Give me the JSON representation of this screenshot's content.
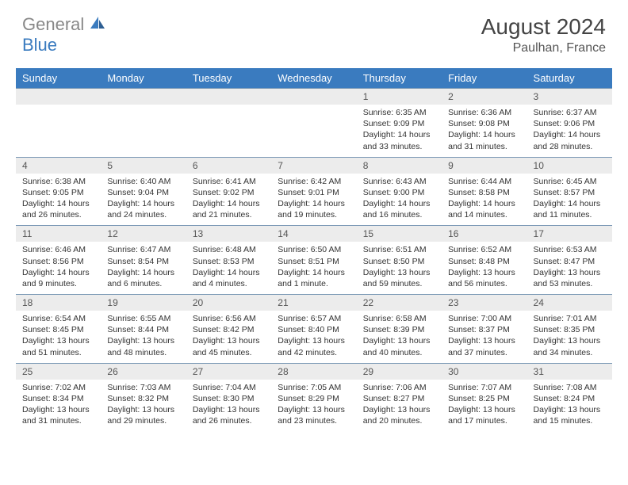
{
  "brand": {
    "part1": "General",
    "part2": "Blue"
  },
  "title": "August 2024",
  "location": "Paulhan, France",
  "colors": {
    "header_bg": "#3a7bbf",
    "daynum_bg": "#ececec",
    "rule": "#7a98b5"
  },
  "dow": [
    "Sunday",
    "Monday",
    "Tuesday",
    "Wednesday",
    "Thursday",
    "Friday",
    "Saturday"
  ],
  "weeks": [
    {
      "nums": [
        "",
        "",
        "",
        "",
        "1",
        "2",
        "3"
      ],
      "cells": [
        null,
        null,
        null,
        null,
        {
          "rise": "Sunrise: 6:35 AM",
          "set": "Sunset: 9:09 PM",
          "dl1": "Daylight: 14 hours",
          "dl2": "and 33 minutes."
        },
        {
          "rise": "Sunrise: 6:36 AM",
          "set": "Sunset: 9:08 PM",
          "dl1": "Daylight: 14 hours",
          "dl2": "and 31 minutes."
        },
        {
          "rise": "Sunrise: 6:37 AM",
          "set": "Sunset: 9:06 PM",
          "dl1": "Daylight: 14 hours",
          "dl2": "and 28 minutes."
        }
      ]
    },
    {
      "nums": [
        "4",
        "5",
        "6",
        "7",
        "8",
        "9",
        "10"
      ],
      "cells": [
        {
          "rise": "Sunrise: 6:38 AM",
          "set": "Sunset: 9:05 PM",
          "dl1": "Daylight: 14 hours",
          "dl2": "and 26 minutes."
        },
        {
          "rise": "Sunrise: 6:40 AM",
          "set": "Sunset: 9:04 PM",
          "dl1": "Daylight: 14 hours",
          "dl2": "and 24 minutes."
        },
        {
          "rise": "Sunrise: 6:41 AM",
          "set": "Sunset: 9:02 PM",
          "dl1": "Daylight: 14 hours",
          "dl2": "and 21 minutes."
        },
        {
          "rise": "Sunrise: 6:42 AM",
          "set": "Sunset: 9:01 PM",
          "dl1": "Daylight: 14 hours",
          "dl2": "and 19 minutes."
        },
        {
          "rise": "Sunrise: 6:43 AM",
          "set": "Sunset: 9:00 PM",
          "dl1": "Daylight: 14 hours",
          "dl2": "and 16 minutes."
        },
        {
          "rise": "Sunrise: 6:44 AM",
          "set": "Sunset: 8:58 PM",
          "dl1": "Daylight: 14 hours",
          "dl2": "and 14 minutes."
        },
        {
          "rise": "Sunrise: 6:45 AM",
          "set": "Sunset: 8:57 PM",
          "dl1": "Daylight: 14 hours",
          "dl2": "and 11 minutes."
        }
      ]
    },
    {
      "nums": [
        "11",
        "12",
        "13",
        "14",
        "15",
        "16",
        "17"
      ],
      "cells": [
        {
          "rise": "Sunrise: 6:46 AM",
          "set": "Sunset: 8:56 PM",
          "dl1": "Daylight: 14 hours",
          "dl2": "and 9 minutes."
        },
        {
          "rise": "Sunrise: 6:47 AM",
          "set": "Sunset: 8:54 PM",
          "dl1": "Daylight: 14 hours",
          "dl2": "and 6 minutes."
        },
        {
          "rise": "Sunrise: 6:48 AM",
          "set": "Sunset: 8:53 PM",
          "dl1": "Daylight: 14 hours",
          "dl2": "and 4 minutes."
        },
        {
          "rise": "Sunrise: 6:50 AM",
          "set": "Sunset: 8:51 PM",
          "dl1": "Daylight: 14 hours",
          "dl2": "and 1 minute."
        },
        {
          "rise": "Sunrise: 6:51 AM",
          "set": "Sunset: 8:50 PM",
          "dl1": "Daylight: 13 hours",
          "dl2": "and 59 minutes."
        },
        {
          "rise": "Sunrise: 6:52 AM",
          "set": "Sunset: 8:48 PM",
          "dl1": "Daylight: 13 hours",
          "dl2": "and 56 minutes."
        },
        {
          "rise": "Sunrise: 6:53 AM",
          "set": "Sunset: 8:47 PM",
          "dl1": "Daylight: 13 hours",
          "dl2": "and 53 minutes."
        }
      ]
    },
    {
      "nums": [
        "18",
        "19",
        "20",
        "21",
        "22",
        "23",
        "24"
      ],
      "cells": [
        {
          "rise": "Sunrise: 6:54 AM",
          "set": "Sunset: 8:45 PM",
          "dl1": "Daylight: 13 hours",
          "dl2": "and 51 minutes."
        },
        {
          "rise": "Sunrise: 6:55 AM",
          "set": "Sunset: 8:44 PM",
          "dl1": "Daylight: 13 hours",
          "dl2": "and 48 minutes."
        },
        {
          "rise": "Sunrise: 6:56 AM",
          "set": "Sunset: 8:42 PM",
          "dl1": "Daylight: 13 hours",
          "dl2": "and 45 minutes."
        },
        {
          "rise": "Sunrise: 6:57 AM",
          "set": "Sunset: 8:40 PM",
          "dl1": "Daylight: 13 hours",
          "dl2": "and 42 minutes."
        },
        {
          "rise": "Sunrise: 6:58 AM",
          "set": "Sunset: 8:39 PM",
          "dl1": "Daylight: 13 hours",
          "dl2": "and 40 minutes."
        },
        {
          "rise": "Sunrise: 7:00 AM",
          "set": "Sunset: 8:37 PM",
          "dl1": "Daylight: 13 hours",
          "dl2": "and 37 minutes."
        },
        {
          "rise": "Sunrise: 7:01 AM",
          "set": "Sunset: 8:35 PM",
          "dl1": "Daylight: 13 hours",
          "dl2": "and 34 minutes."
        }
      ]
    },
    {
      "nums": [
        "25",
        "26",
        "27",
        "28",
        "29",
        "30",
        "31"
      ],
      "cells": [
        {
          "rise": "Sunrise: 7:02 AM",
          "set": "Sunset: 8:34 PM",
          "dl1": "Daylight: 13 hours",
          "dl2": "and 31 minutes."
        },
        {
          "rise": "Sunrise: 7:03 AM",
          "set": "Sunset: 8:32 PM",
          "dl1": "Daylight: 13 hours",
          "dl2": "and 29 minutes."
        },
        {
          "rise": "Sunrise: 7:04 AM",
          "set": "Sunset: 8:30 PM",
          "dl1": "Daylight: 13 hours",
          "dl2": "and 26 minutes."
        },
        {
          "rise": "Sunrise: 7:05 AM",
          "set": "Sunset: 8:29 PM",
          "dl1": "Daylight: 13 hours",
          "dl2": "and 23 minutes."
        },
        {
          "rise": "Sunrise: 7:06 AM",
          "set": "Sunset: 8:27 PM",
          "dl1": "Daylight: 13 hours",
          "dl2": "and 20 minutes."
        },
        {
          "rise": "Sunrise: 7:07 AM",
          "set": "Sunset: 8:25 PM",
          "dl1": "Daylight: 13 hours",
          "dl2": "and 17 minutes."
        },
        {
          "rise": "Sunrise: 7:08 AM",
          "set": "Sunset: 8:24 PM",
          "dl1": "Daylight: 13 hours",
          "dl2": "and 15 minutes."
        }
      ]
    }
  ]
}
